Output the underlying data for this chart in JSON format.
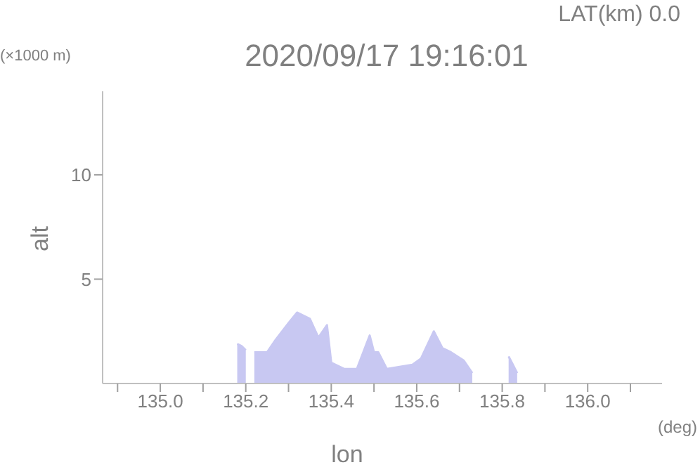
{
  "chart_data": {
    "type": "area",
    "title": "2020/09/17 19:16:01",
    "subtitle": "LAT(km) 0.0",
    "xlabel": "lon",
    "ylabel": "alt",
    "annotations": [
      "(×1000 m)",
      "(deg)"
    ],
    "x": [
      135.18,
      135.19,
      135.2,
      135.21,
      135.22,
      135.25,
      135.27,
      135.3,
      135.32,
      135.35,
      135.37,
      135.39,
      135.4,
      135.43,
      135.46,
      135.49,
      135.5,
      135.51,
      135.53,
      135.56,
      135.59,
      135.61,
      135.64,
      135.66,
      135.68,
      135.71,
      135.73,
      135.76,
      135.815,
      135.825,
      135.835
    ],
    "values": [
      1.9,
      1.8,
      1.6,
      null,
      1.5,
      1.5,
      2.1,
      2.9,
      3.4,
      3.1,
      2.2,
      2.8,
      1.0,
      0.7,
      0.7,
      2.3,
      1.5,
      1.5,
      0.7,
      0.8,
      0.9,
      1.2,
      2.5,
      1.7,
      1.5,
      1.1,
      0.5,
      null,
      1.3,
      0.9,
      0.5
    ],
    "color": "#c8c8f2",
    "xlim": [
      134.865,
      136.174
    ],
    "xticks": [
      {
        "value": 134.9,
        "label": null
      },
      {
        "value": 135.0,
        "label": "135.0"
      },
      {
        "value": 135.1,
        "label": null
      },
      {
        "value": 135.2,
        "label": "135.2"
      },
      {
        "value": 135.3,
        "label": null
      },
      {
        "value": 135.4,
        "label": "135.4"
      },
      {
        "value": 135.5,
        "label": null
      },
      {
        "value": 135.6,
        "label": "135.6"
      },
      {
        "value": 135.7,
        "label": null
      },
      {
        "value": 135.8,
        "label": "135.8"
      },
      {
        "value": 135.9,
        "label": null
      },
      {
        "value": 136.0,
        "label": "136.0"
      },
      {
        "value": 136.1,
        "label": null
      }
    ],
    "ylim": [
      0,
      14
    ],
    "yticks": [
      5,
      10
    ],
    "grid": false
  }
}
